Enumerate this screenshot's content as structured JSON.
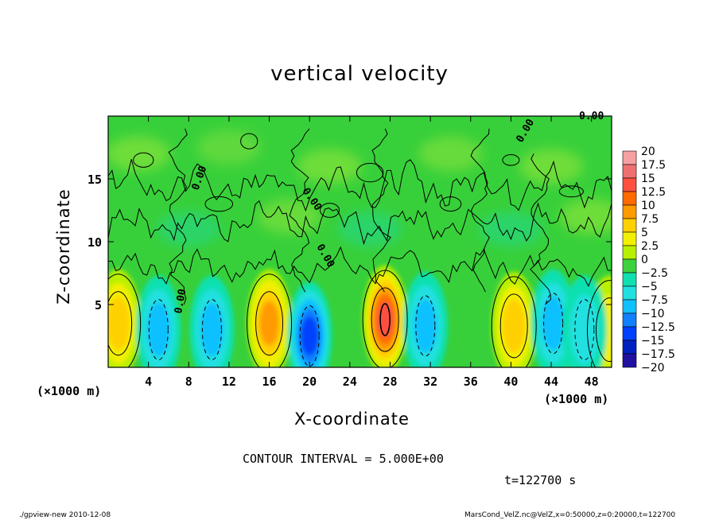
{
  "chart_data": {
    "type": "heatmap",
    "title": "vertical velocity",
    "xlabel": "X-coordinate",
    "ylabel": "Z-coordinate",
    "x_unit": "(×1000 m)",
    "y_unit": "(×1000 m)",
    "xlim": [
      0,
      50
    ],
    "ylim": [
      0,
      20
    ],
    "x_ticks": [
      "4",
      "8",
      "12",
      "16",
      "20",
      "24",
      "28",
      "32",
      "36",
      "40",
      "44",
      "48"
    ],
    "y_ticks": [
      "5",
      "10",
      "15"
    ],
    "contour_interval": "CONTOUR INTERVAL = 5.000E+00",
    "contour_labels": [
      "0.00",
      "0.00",
      "0.00",
      "0.00",
      "0.00",
      "0.00"
    ],
    "time": "t=122700 s",
    "colorbar": {
      "levels": [
        "20",
        "17.5",
        "15",
        "12.5",
        "10",
        "7.5",
        "5",
        "2.5",
        "0",
        "−2.5",
        "−5",
        "−7.5",
        "−10",
        "−12.5",
        "−15",
        "−17.5",
        "−20"
      ],
      "colors": [
        "#f7a0a0",
        "#f07070",
        "#ff5040",
        "#ff6a00",
        "#ff9a00",
        "#ffd000",
        "#f2f000",
        "#b8f000",
        "#3cd23c",
        "#10e0b0",
        "#20e0e0",
        "#10c0ff",
        "#1080ff",
        "#0040ff",
        "#0020c0",
        "#2010a0",
        "#8010c0"
      ]
    },
    "updrafts": [
      {
        "x": 1.0,
        "z": 3.5,
        "w": 9
      },
      {
        "x": 16.0,
        "z": 3.5,
        "w": 10
      },
      {
        "x": 27.5,
        "z": 3.8,
        "w": 15
      },
      {
        "x": 40.3,
        "z": 3.3,
        "w": 8
      },
      {
        "x": 49.8,
        "z": 3.0,
        "w": 6
      }
    ],
    "downdrafts": [
      {
        "x": 5.0,
        "z": 3.0,
        "w": -9
      },
      {
        "x": 10.3,
        "z": 3.0,
        "w": -8
      },
      {
        "x": 20.0,
        "z": 2.5,
        "w": -13
      },
      {
        "x": 31.5,
        "z": 3.3,
        "w": -8
      },
      {
        "x": 44.2,
        "z": 3.5,
        "w": -8
      },
      {
        "x": 47.3,
        "z": 3.0,
        "w": -6
      }
    ]
  },
  "footer": {
    "left": "./gpview-new   2010-12-08",
    "right": "MarsCond_VelZ.nc@VelZ,x=0:50000,z=0:20000,t=122700"
  }
}
